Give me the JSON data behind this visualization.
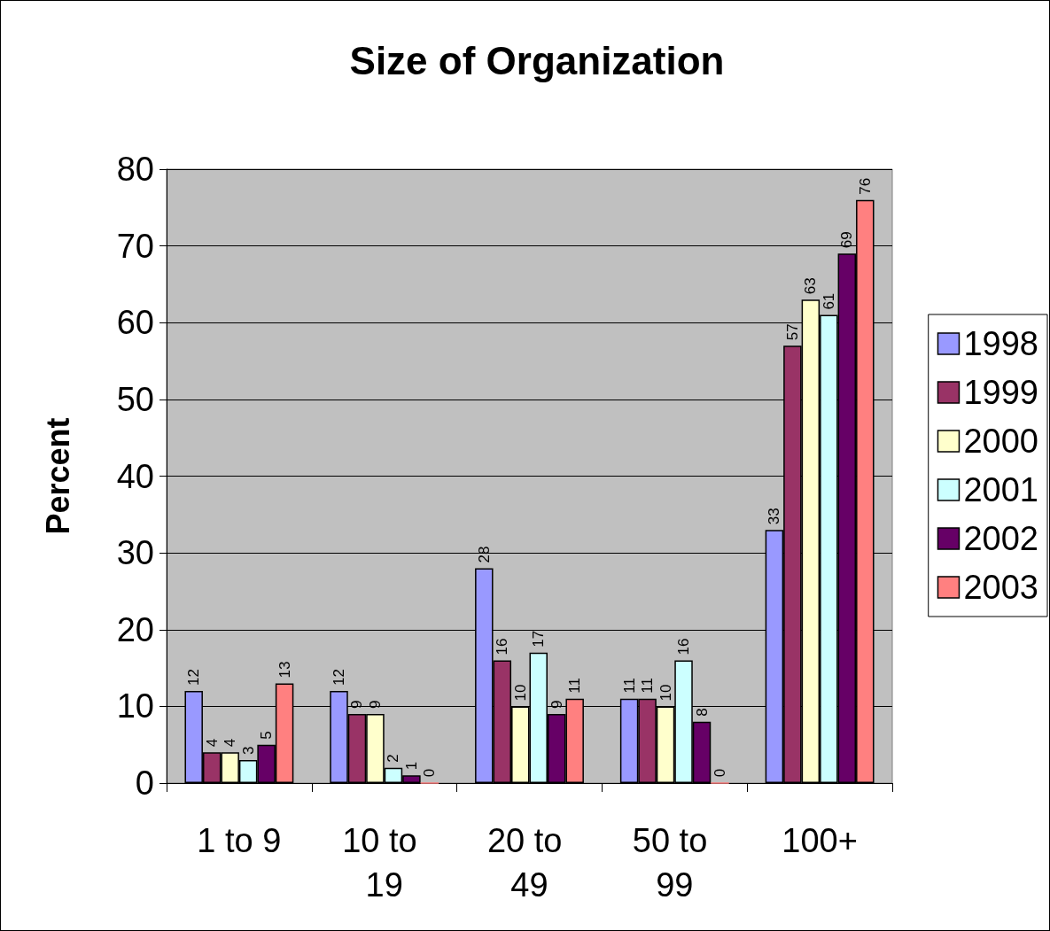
{
  "chart_data": {
    "type": "bar",
    "title": "Size of Organization",
    "ylabel": "Percent",
    "categories": [
      "1 to 9",
      "10 to 19",
      "20 to 49",
      "50 to 99",
      "100+"
    ],
    "series": [
      {
        "name": "1998",
        "color": "#9999ff",
        "values": [
          12,
          12,
          28,
          11,
          33
        ]
      },
      {
        "name": "1999",
        "color": "#993366",
        "values": [
          4,
          9,
          16,
          11,
          57
        ]
      },
      {
        "name": "2000",
        "color": "#ffffcc",
        "values": [
          4,
          9,
          10,
          10,
          63
        ]
      },
      {
        "name": "2001",
        "color": "#ccffff",
        "values": [
          3,
          2,
          17,
          16,
          61
        ]
      },
      {
        "name": "2002",
        "color": "#660066",
        "values": [
          5,
          1,
          9,
          8,
          69
        ]
      },
      {
        "name": "2003",
        "color": "#ff8080",
        "values": [
          13,
          0,
          11,
          0,
          76
        ]
      }
    ],
    "ylim": [
      0,
      80
    ],
    "yticks": [
      0,
      10,
      20,
      30,
      40,
      50,
      60,
      70,
      80
    ],
    "grid": "y",
    "legend": "right",
    "data_labels": true
  }
}
